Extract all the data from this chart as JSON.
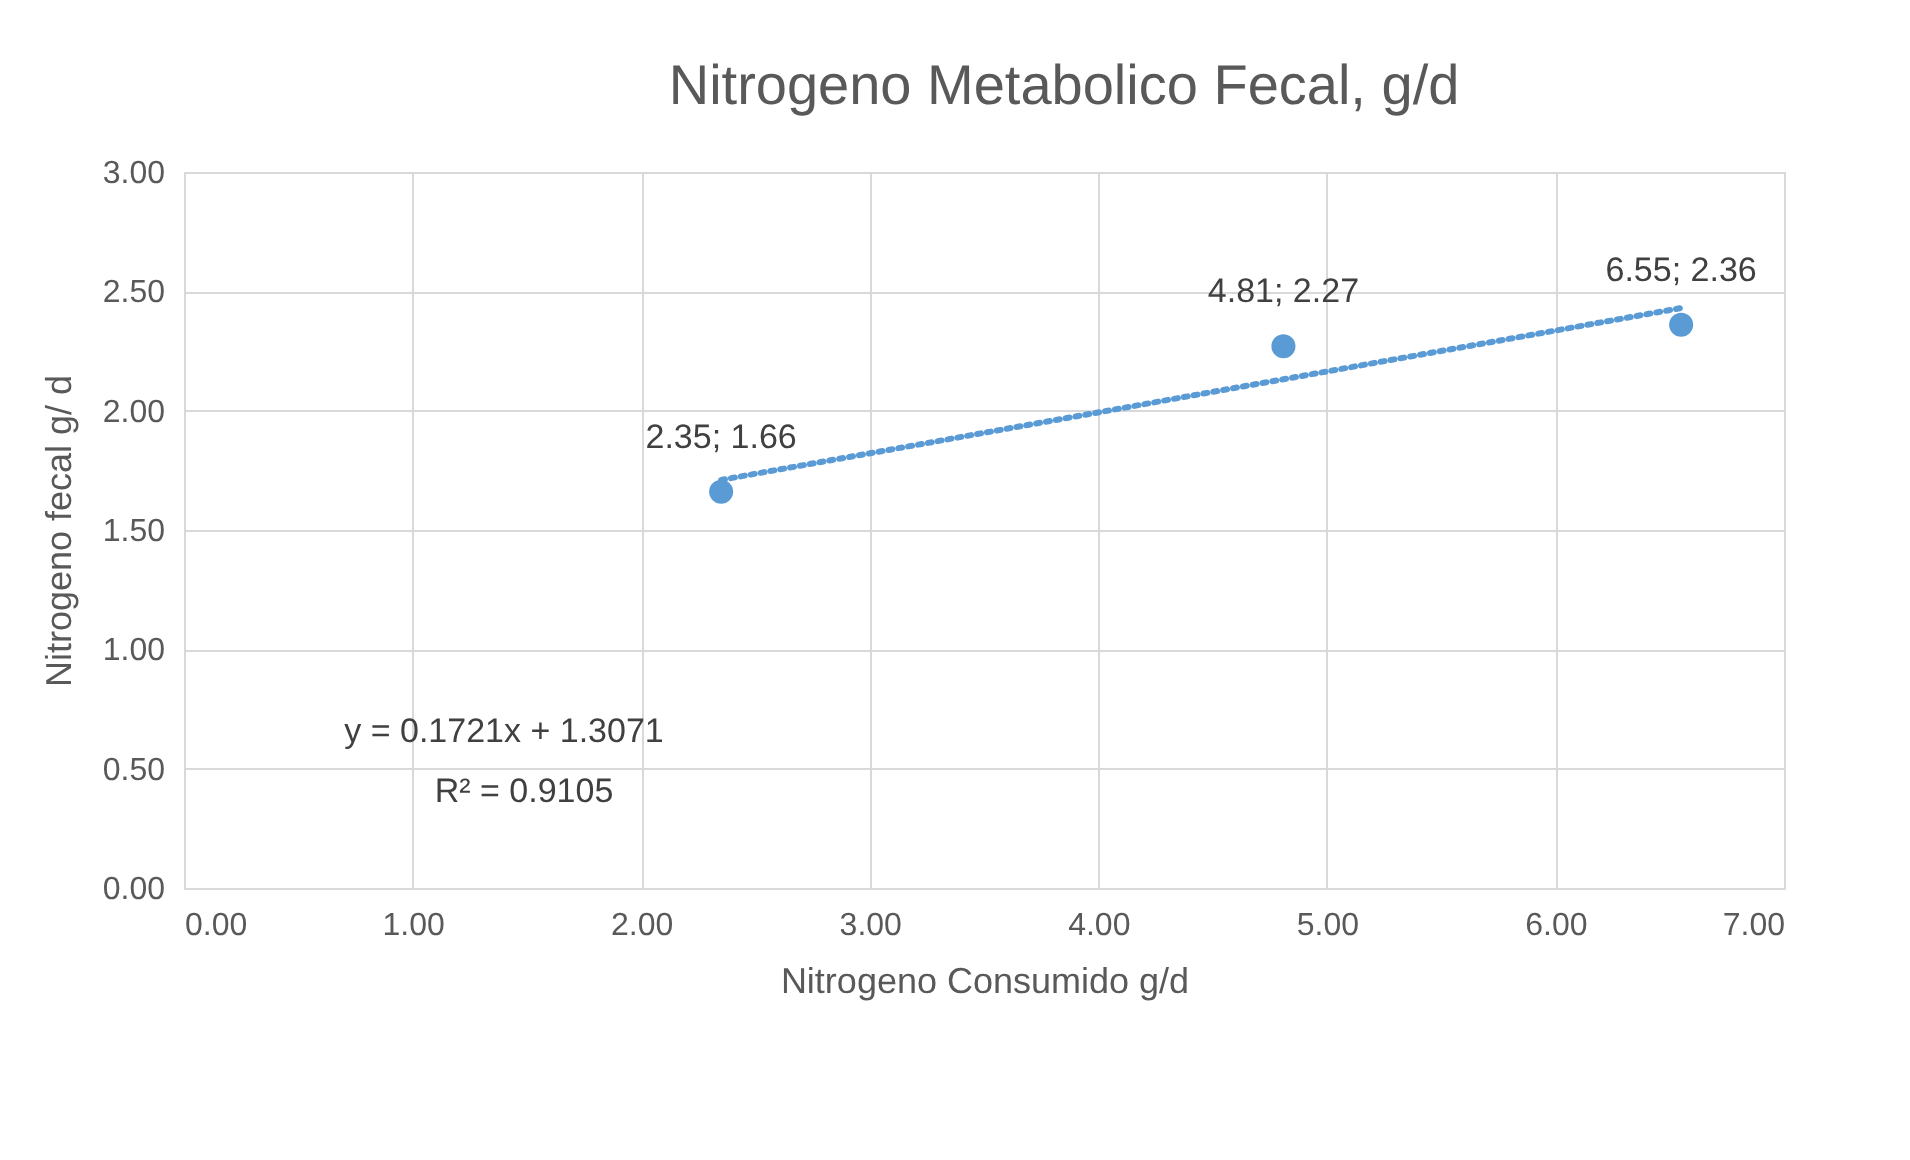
{
  "chart_data": {
    "type": "scatter",
    "title": "Nitrogeno Metabolico Fecal, g/d",
    "xlabel": "Nitrogeno Consumido g/d",
    "ylabel": "Nitrogeno fecal g/ d",
    "xlim": [
      0,
      7
    ],
    "xticks": [
      {
        "value": 0,
        "label": "0.00"
      },
      {
        "value": 1,
        "label": "1.00"
      },
      {
        "value": 2,
        "label": "2.00"
      },
      {
        "value": 3,
        "label": "3.00"
      },
      {
        "value": 4,
        "label": "4.00"
      },
      {
        "value": 5,
        "label": "5.00"
      },
      {
        "value": 6,
        "label": "6.00"
      },
      {
        "value": 7,
        "label": "7.00"
      }
    ],
    "ylim": [
      0,
      3
    ],
    "yticks": [
      {
        "value": 0,
        "label": "0.00"
      },
      {
        "value": 0.5,
        "label": "0.50"
      },
      {
        "value": 1,
        "label": "1.00"
      },
      {
        "value": 1.5,
        "label": "1.50"
      },
      {
        "value": 2,
        "label": "2.00"
      },
      {
        "value": 2.5,
        "label": "2.50"
      },
      {
        "value": 3,
        "label": "3.00"
      }
    ],
    "grid": true,
    "series": [
      {
        "color": "#5b9bd5",
        "marker": "circle",
        "x": [
          2.35,
          4.81,
          6.55
        ],
        "values": [
          1.66,
          2.27,
          2.36
        ],
        "value_labels": [
          "2.35; 1.66",
          "4.81; 2.27",
          "6.55; 2.36"
        ]
      },
      {
        "type": "line",
        "color": "#5b9bd5",
        "line_style": "dotted",
        "x": [
          2.35,
          6.55
        ],
        "values": [
          1.71,
          2.43
        ]
      }
    ],
    "annotations": [
      "y = 0.1721x + 1.3071",
      "R² = 0.9105"
    ]
  }
}
